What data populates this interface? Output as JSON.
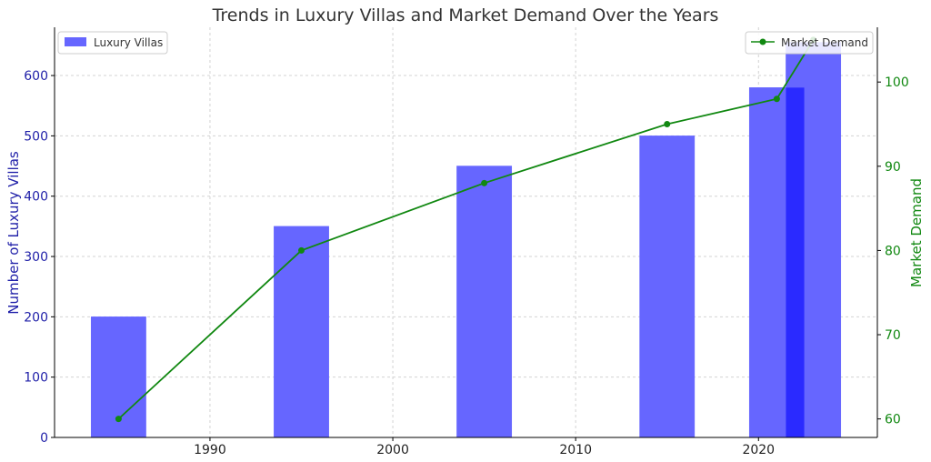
{
  "chart_data": {
    "type": "bar+line",
    "title": "Trends in Luxury Villas and Market Demand Over the Years",
    "x_ticks": [
      1990,
      2000,
      2010,
      2020
    ],
    "xlim": [
      1981.5,
      2026.5
    ],
    "bar_series": {
      "name": "Luxury Villas",
      "axis": "left",
      "color": "#6666ff",
      "overlap_color": "#2a2aff",
      "bar_width_years": 3,
      "points": [
        {
          "x": 1985,
          "y": 200
        },
        {
          "x": 1995,
          "y": 350
        },
        {
          "x": 2005,
          "y": 450
        },
        {
          "x": 2015,
          "y": 500
        },
        {
          "x": 2021,
          "y": 580
        },
        {
          "x": 2023,
          "y": 655
        }
      ]
    },
    "line_series": {
      "name": "Market Demand",
      "axis": "right",
      "color": "#118811",
      "points": [
        {
          "x": 1985,
          "y": 60
        },
        {
          "x": 1995,
          "y": 80
        },
        {
          "x": 2005,
          "y": 88
        },
        {
          "x": 2015,
          "y": 95
        },
        {
          "x": 2021,
          "y": 98
        },
        {
          "x": 2023,
          "y": 105
        }
      ]
    },
    "left_axis": {
      "label": "Number of Luxury Villas",
      "ticks": [
        0,
        100,
        200,
        300,
        400,
        500,
        600
      ],
      "ylim": [
        0,
        680
      ],
      "color": "#1f1fa8"
    },
    "right_axis": {
      "label": "Market Demand",
      "ticks": [
        60,
        70,
        80,
        90,
        100
      ],
      "ylim": [
        57.8,
        106.5
      ],
      "color": "#118811"
    },
    "grid": true,
    "legend_left_placement": "top-left",
    "legend_right_placement": "top-right"
  }
}
